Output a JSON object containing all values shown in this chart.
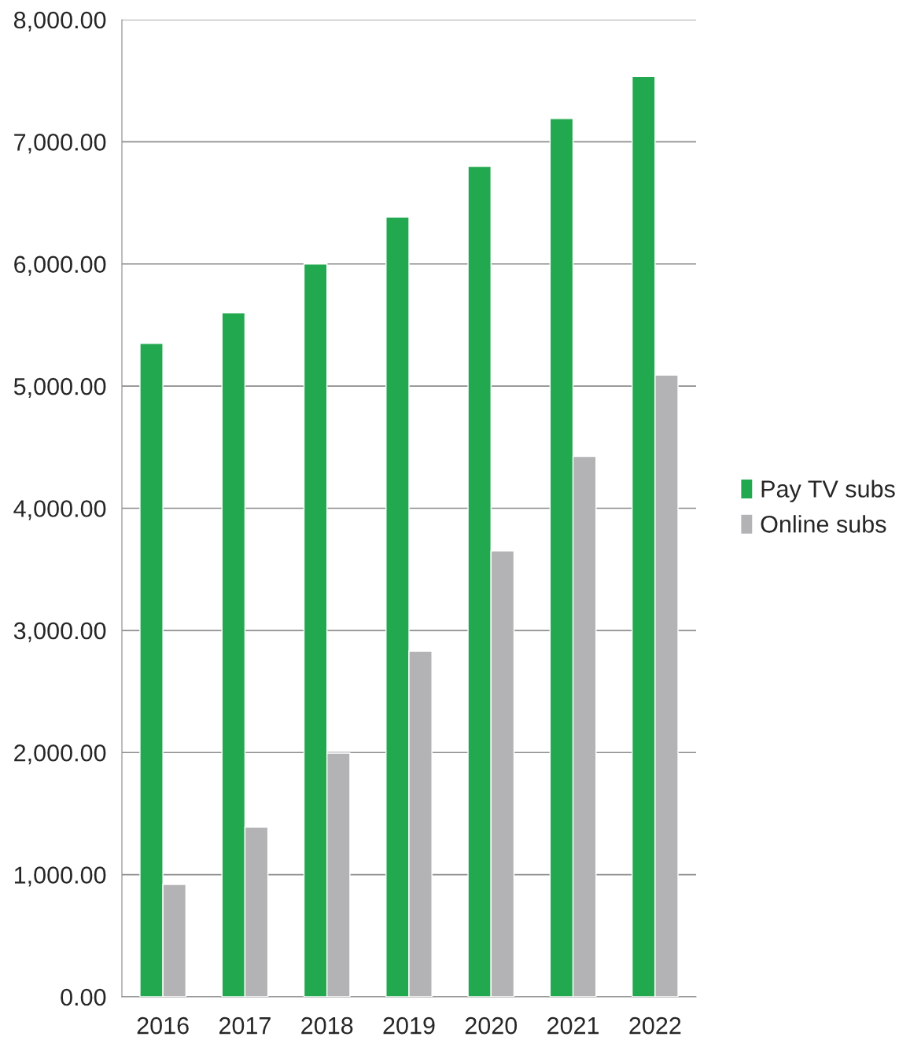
{
  "chart_data": {
    "type": "bar",
    "categories": [
      "2016",
      "2017",
      "2018",
      "2019",
      "2020",
      "2021",
      "2022"
    ],
    "series": [
      {
        "name": "Pay TV subs",
        "color": "#22a94f",
        "values": [
          5350,
          5600,
          6000,
          6385,
          6800,
          7190,
          7535
        ]
      },
      {
        "name": "Online subs",
        "color": "#b3b3b5",
        "values": [
          920,
          1390,
          1995,
          2830,
          3650,
          4425,
          5090
        ]
      }
    ],
    "ylim": [
      0,
      8000
    ],
    "yticks": [
      {
        "value": 0,
        "label": "0.00"
      },
      {
        "value": 1000,
        "label": "1,000.00"
      },
      {
        "value": 2000,
        "label": "2,000.00"
      },
      {
        "value": 3000,
        "label": "3,000.00"
      },
      {
        "value": 4000,
        "label": "4,000.00"
      },
      {
        "value": 5000,
        "label": "5,000.00"
      },
      {
        "value": 6000,
        "label": "6,000.00"
      },
      {
        "value": 7000,
        "label": "7,000.00"
      },
      {
        "value": 8000,
        "label": "8,000.00"
      }
    ],
    "grid": "y",
    "legend": "right"
  }
}
